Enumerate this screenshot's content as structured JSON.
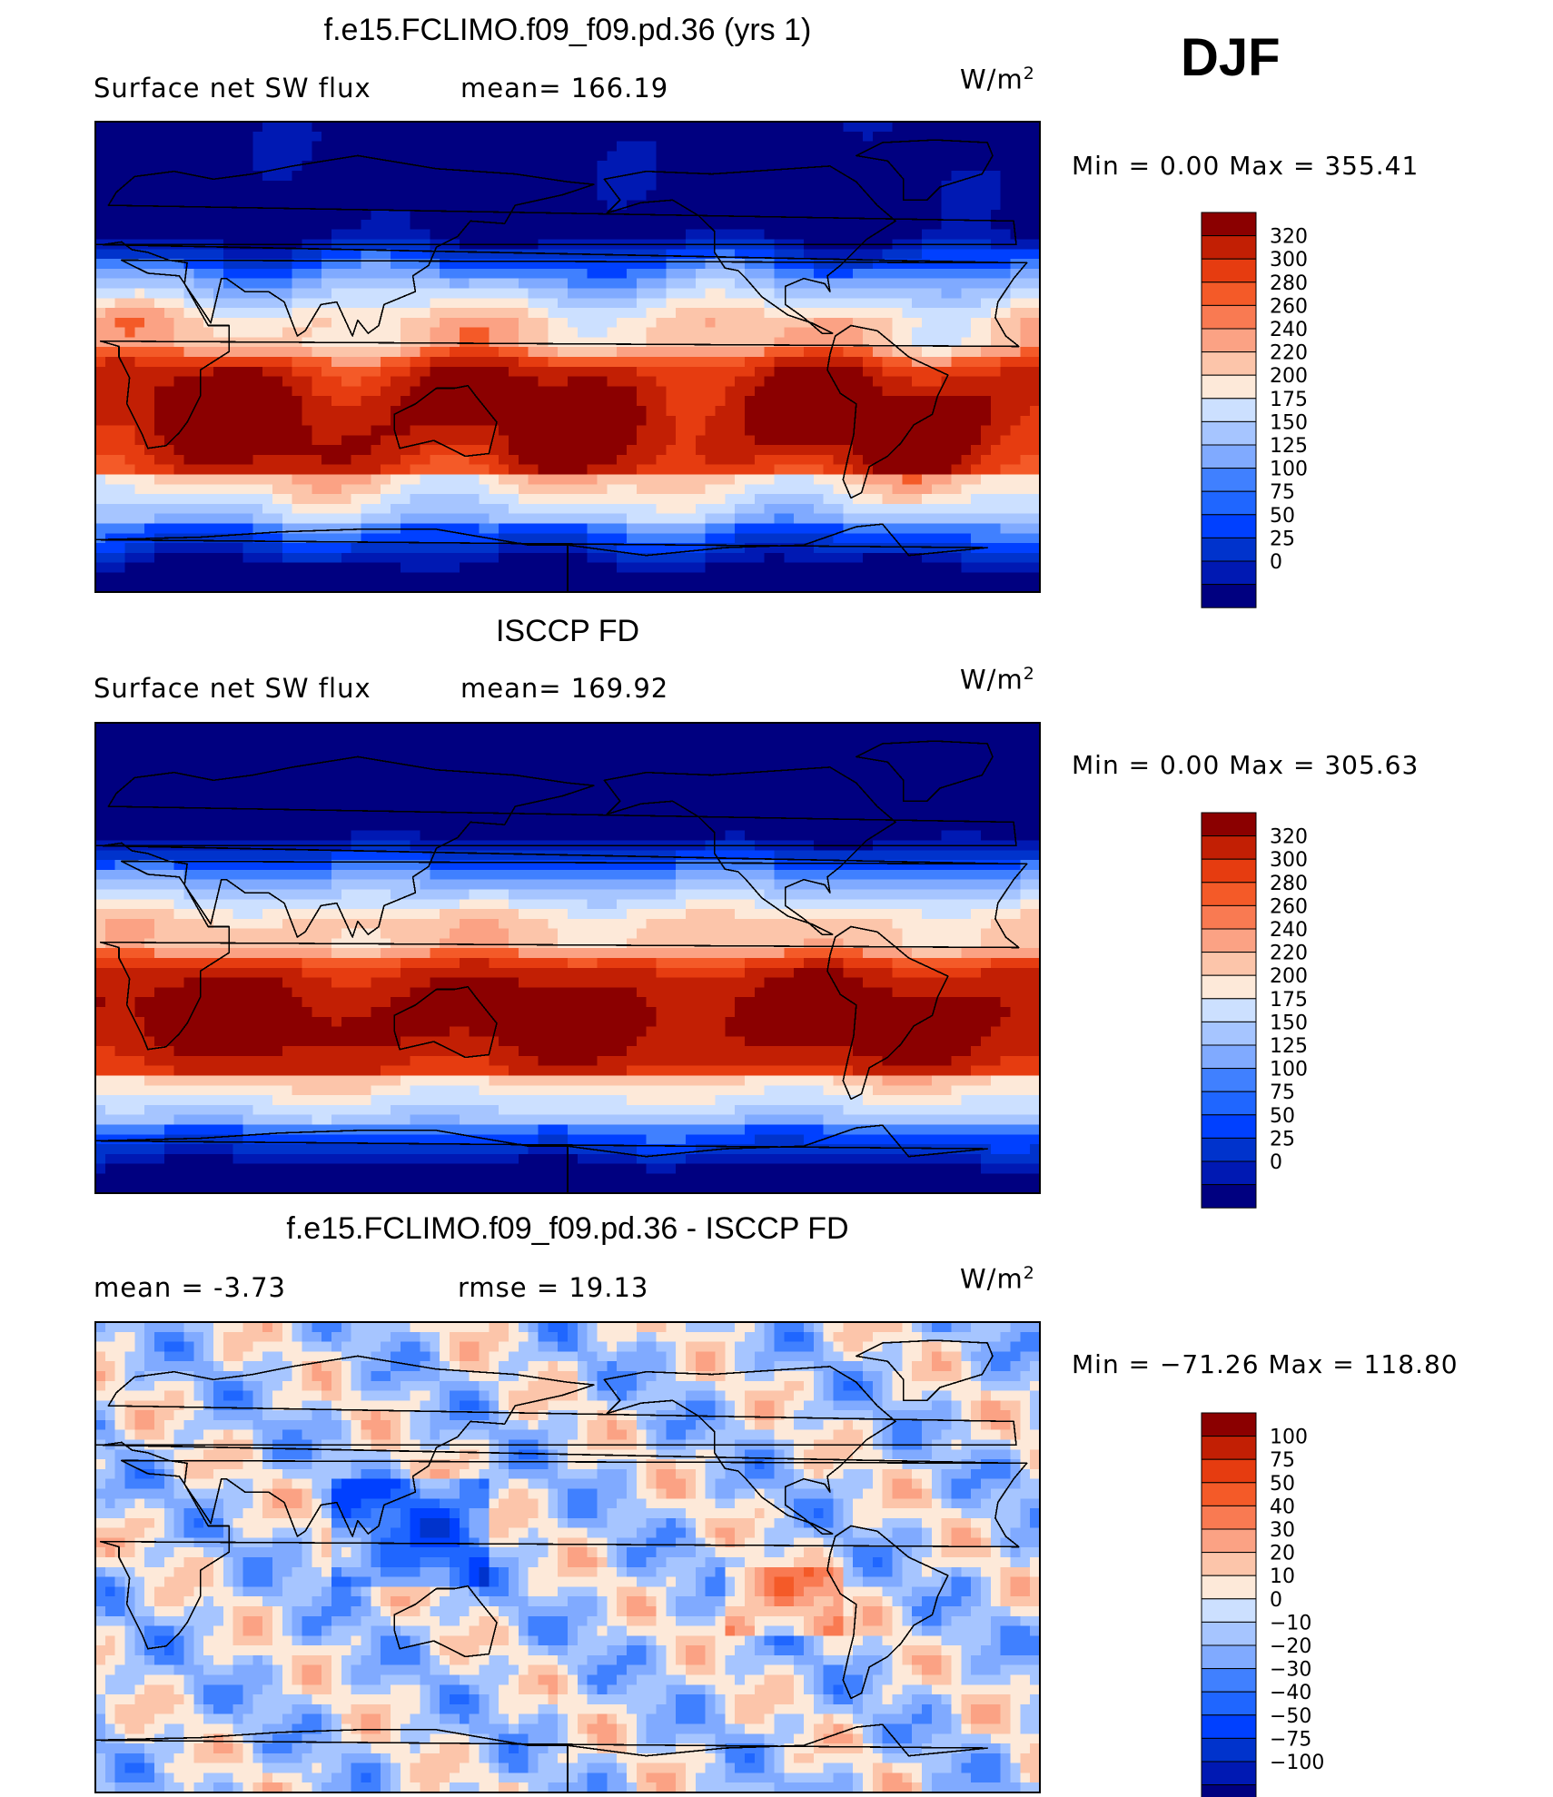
{
  "season": "DJF",
  "units_label": "W/m",
  "units_exp": "2",
  "colors": {
    "full": [
      "#000080",
      "#0019b3",
      "#0033cc",
      "#0040ff",
      "#1f66ff",
      "#4080ff",
      "#80aaff",
      "#a6c5ff",
      "#cce0ff",
      "#fde9d9",
      "#fcc5aa",
      "#fba284",
      "#f97a52",
      "#f45a28",
      "#e63c10",
      "#c21f04",
      "#8b0000"
    ],
    "diff": [
      "#000080",
      "#0019b3",
      "#0033cc",
      "#0040ff",
      "#1f66ff",
      "#4080ff",
      "#80aaff",
      "#a6c5ff",
      "#cce0ff",
      "#fde9d9",
      "#fcc5aa",
      "#fba284",
      "#f97a52",
      "#f45a28",
      "#e63c10",
      "#c21f04",
      "#8b0000"
    ]
  },
  "panels": [
    {
      "title": "f.e15.FCLIMO.f09_f09.pd.36 (yrs 1)",
      "left_label": "Surface net SW flux",
      "mid_label": "mean=  166.19",
      "minmax": "Min =     0.00 Max = 355.41",
      "mean": 166.19
    },
    {
      "title": "ISCCP FD",
      "left_label": "Surface net SW flux",
      "mid_label": "mean=  169.92",
      "minmax": "Min =     0.00 Max = 305.63",
      "mean": 169.92
    },
    {
      "title": "f.e15.FCLIMO.f09_f09.pd.36 - ISCCP FD",
      "left_label": "mean =    -3.73",
      "mid_label": "rmse =    19.13",
      "minmax": "Min = −71.26 Max = 118.80",
      "mean": -3.73,
      "rmse": 19.13
    }
  ],
  "chart_data": [
    {
      "type": "heatmap",
      "title": "f.e15.FCLIMO.f09_f09.pd.36 (yrs 1)",
      "variable": "Surface net SW flux",
      "units": "W/m2",
      "mean": 166.19,
      "min": 0.0,
      "max": 355.41,
      "colorbar_levels": [
        "320",
        "300",
        "280",
        "260",
        "240",
        "220",
        "200",
        "175",
        "150",
        "125",
        "100",
        "75",
        "50",
        "25",
        "0"
      ]
    },
    {
      "type": "heatmap",
      "title": "ISCCP FD",
      "variable": "Surface net SW flux",
      "units": "W/m2",
      "mean": 169.92,
      "min": 0.0,
      "max": 305.63,
      "colorbar_levels": [
        "320",
        "300",
        "280",
        "260",
        "240",
        "220",
        "200",
        "175",
        "150",
        "125",
        "100",
        "75",
        "50",
        "25",
        "0"
      ]
    },
    {
      "type": "heatmap",
      "title": "f.e15.FCLIMO.f09_f09.pd.36 - ISCCP FD",
      "units": "W/m2",
      "mean": -3.73,
      "rmse": 19.13,
      "min": -71.26,
      "max": 118.8,
      "colorbar_levels": [
        "100",
        "75",
        "50",
        "40",
        "30",
        "20",
        "10",
        "0",
        "−10",
        "−20",
        "−30",
        "−40",
        "−50",
        "−75",
        "−100"
      ]
    }
  ]
}
